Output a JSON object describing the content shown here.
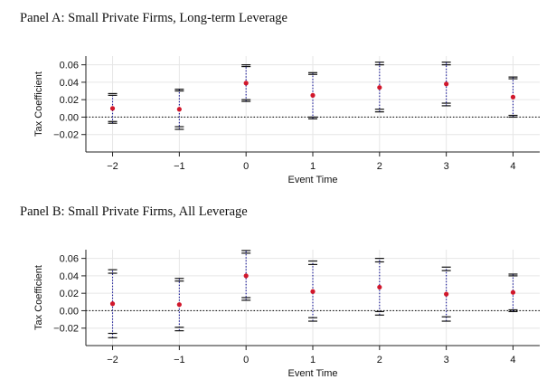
{
  "panels": [
    {
      "title": "Panel A: Small Private Firms, Long-term Leverage"
    },
    {
      "title": "Panel B: Small Private Firms, All Leverage"
    }
  ],
  "colors": {
    "point": "#d1172b",
    "errorbar": "#1a1a9a",
    "zero_line": "#1a1a1a",
    "grid": "#e6e6e6"
  },
  "chart_data": [
    {
      "type": "scatter",
      "title": "Panel A: Small Private Firms, Long-term Leverage",
      "xlabel": "Event Time",
      "ylabel": "Tax Coefficient",
      "x": [
        -2,
        -1,
        0,
        1,
        2,
        3,
        4
      ],
      "y": [
        0.01,
        0.009,
        0.039,
        0.025,
        0.034,
        0.038,
        0.023
      ],
      "ci90": [
        [
          -0.005,
          0.025
        ],
        [
          -0.011,
          0.03
        ],
        [
          0.02,
          0.058
        ],
        [
          0.0,
          0.049
        ],
        [
          0.009,
          0.06
        ],
        [
          0.016,
          0.06
        ],
        [
          0.002,
          0.044
        ]
      ],
      "ci95": [
        [
          -0.007,
          0.027
        ],
        [
          -0.014,
          0.032
        ],
        [
          0.018,
          0.06
        ],
        [
          -0.002,
          0.051
        ],
        [
          0.006,
          0.063
        ],
        [
          0.013,
          0.063
        ],
        [
          0.0,
          0.046
        ]
      ],
      "xlim": [
        -2.4,
        4.4
      ],
      "ylim": [
        -0.04,
        0.07
      ],
      "xticks": [
        "−2",
        "−1",
        "0",
        "1",
        "2",
        "3",
        "4"
      ],
      "yticks": [
        "0.06",
        "0.04",
        "0.02",
        "0.00",
        "−0.02"
      ],
      "ytick_values": [
        0.06,
        0.04,
        0.02,
        0.0,
        -0.02
      ],
      "reference_line": 0,
      "grid": true
    },
    {
      "type": "scatter",
      "title": "Panel B: Small Private Firms, All Leverage",
      "xlabel": "Event Time",
      "ylabel": "Tax Coefficient",
      "x": [
        -2,
        -1,
        0,
        1,
        2,
        3,
        4
      ],
      "y": [
        0.008,
        0.007,
        0.04,
        0.022,
        0.027,
        0.019,
        0.021
      ],
      "ci90": [
        [
          -0.026,
          0.043
        ],
        [
          -0.019,
          0.034
        ],
        [
          0.015,
          0.066
        ],
        [
          -0.008,
          0.053
        ],
        [
          -0.001,
          0.056
        ],
        [
          -0.007,
          0.046
        ],
        [
          0.001,
          0.04
        ]
      ],
      "ci95": [
        [
          -0.031,
          0.047
        ],
        [
          -0.023,
          0.037
        ],
        [
          0.012,
          0.069
        ],
        [
          -0.012,
          0.057
        ],
        [
          -0.005,
          0.06
        ],
        [
          -0.012,
          0.05
        ],
        [
          -0.001,
          0.042
        ]
      ],
      "xlim": [
        -2.4,
        4.4
      ],
      "ylim": [
        -0.04,
        0.07
      ],
      "xticks": [
        "−2",
        "−1",
        "0",
        "1",
        "2",
        "3",
        "4"
      ],
      "yticks": [
        "0.06",
        "0.04",
        "0.02",
        "0.00",
        "−0.02"
      ],
      "ytick_values": [
        0.06,
        0.04,
        0.02,
        0.0,
        -0.02
      ],
      "reference_line": 0,
      "grid": true
    }
  ]
}
